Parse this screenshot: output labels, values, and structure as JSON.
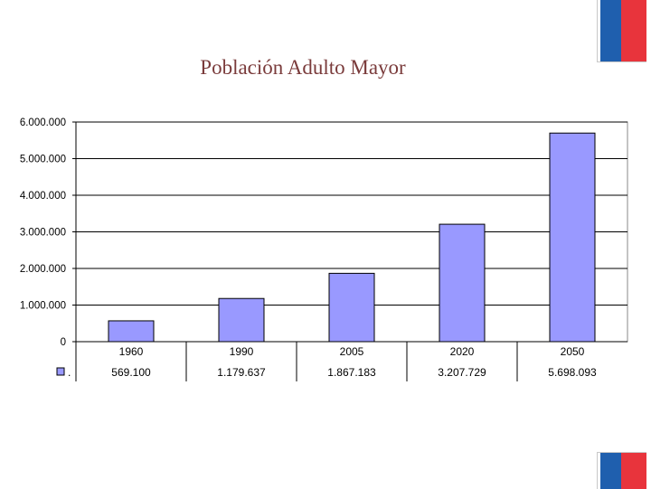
{
  "header": {
    "title": "Población Adulto Mayor"
  },
  "colors": {
    "flag_blue": "#1f5fae",
    "flag_red": "#e8343c",
    "bar": "#9999ff",
    "title": "#7a3b3b"
  },
  "chart_data": {
    "type": "bar",
    "title": "Población Adulto Mayor",
    "xlabel": "",
    "ylabel": "",
    "categories": [
      "1960",
      "1990",
      "2005",
      "2020",
      "2050"
    ],
    "values": [
      569100,
      1179637,
      1867183,
      3207729,
      5698093
    ],
    "value_labels": [
      "569.100",
      "1.179.637",
      "1.867.183",
      "3.207.729",
      "5.698.093"
    ],
    "ylim": [
      0,
      6000000
    ],
    "yticks": [
      0,
      1000000,
      2000000,
      3000000,
      4000000,
      5000000,
      6000000
    ],
    "ytick_labels": [
      "0",
      "1.000.000",
      "2.000.000",
      "3.000.000",
      "4.000.000",
      "5.000.000",
      "6.000.000"
    ],
    "grid": true,
    "legend": "data-table",
    "legend_key_label": "."
  }
}
